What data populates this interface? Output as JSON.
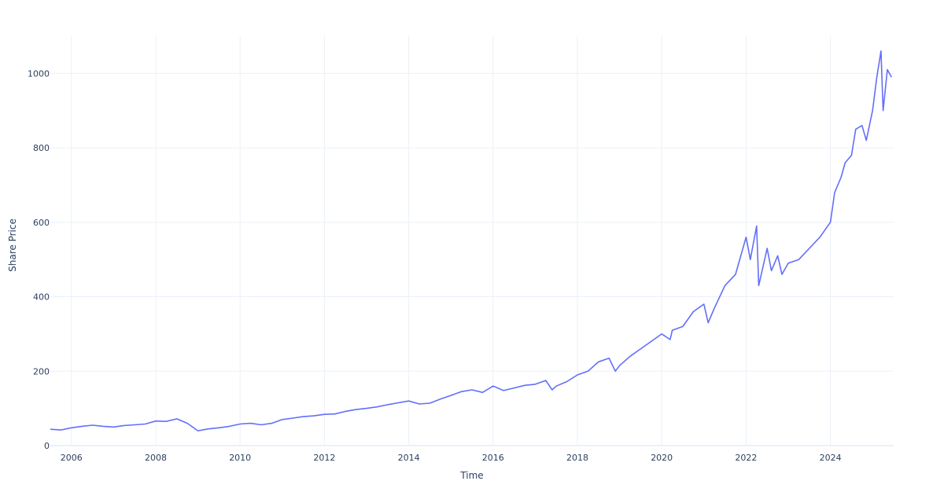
{
  "chart_data": {
    "type": "line",
    "title": "",
    "xlabel": "Time",
    "ylabel": "Share Price",
    "xlim": [
      2005.5,
      2025.5
    ],
    "ylim": [
      0,
      1100
    ],
    "x_ticks": [
      2006,
      2008,
      2010,
      2012,
      2014,
      2016,
      2018,
      2020,
      2022,
      2024
    ],
    "x_tick_labels": [
      "2006",
      "2008",
      "2010",
      "2012",
      "2014",
      "2016",
      "2018",
      "2020",
      "2022",
      "2024"
    ],
    "y_ticks": [
      0,
      200,
      400,
      600,
      800,
      1000
    ],
    "y_tick_labels": [
      "0",
      "200",
      "400",
      "600",
      "800",
      "1000"
    ],
    "grid": true,
    "legend": "none",
    "colors": {
      "line": "#636efa",
      "grid": "#ebf0f8",
      "text": "#2a3f5f",
      "background": "#ffffff"
    },
    "series": [
      {
        "x": [
          2005.5,
          2005.75,
          2006.0,
          2006.25,
          2006.5,
          2006.75,
          2007.0,
          2007.25,
          2007.5,
          2007.75,
          2008.0,
          2008.25,
          2008.5,
          2008.75,
          2009.0,
          2009.25,
          2009.5,
          2009.75,
          2010.0,
          2010.25,
          2010.5,
          2010.75,
          2011.0,
          2011.25,
          2011.5,
          2011.75,
          2012.0,
          2012.25,
          2012.5,
          2012.75,
          2013.0,
          2013.25,
          2013.5,
          2013.75,
          2014.0,
          2014.25,
          2014.5,
          2014.75,
          2015.0,
          2015.25,
          2015.5,
          2015.75,
          2016.0,
          2016.25,
          2016.5,
          2016.75,
          2017.0,
          2017.25,
          2017.4,
          2017.5,
          2017.75,
          2018.0,
          2018.25,
          2018.5,
          2018.75,
          2018.9,
          2019.0,
          2019.25,
          2019.5,
          2019.75,
          2020.0,
          2020.2,
          2020.25,
          2020.5,
          2020.75,
          2021.0,
          2021.1,
          2021.25,
          2021.5,
          2021.75,
          2022.0,
          2022.1,
          2022.25,
          2022.3,
          2022.5,
          2022.6,
          2022.75,
          2022.85,
          2023.0,
          2023.25,
          2023.5,
          2023.75,
          2024.0,
          2024.1,
          2024.25,
          2024.35,
          2024.5,
          2024.6,
          2024.75,
          2024.85,
          2025.0,
          2025.1,
          2025.2,
          2025.25,
          2025.35,
          2025.45
        ],
        "y": [
          44,
          42,
          48,
          52,
          55,
          52,
          50,
          54,
          56,
          58,
          66,
          65,
          72,
          60,
          40,
          45,
          48,
          52,
          58,
          60,
          56,
          60,
          70,
          74,
          78,
          80,
          84,
          85,
          92,
          97,
          100,
          104,
          110,
          115,
          120,
          112,
          114,
          125,
          135,
          145,
          150,
          143,
          160,
          148,
          155,
          162,
          165,
          175,
          150,
          160,
          172,
          190,
          200,
          225,
          235,
          200,
          215,
          240,
          260,
          280,
          300,
          285,
          310,
          320,
          360,
          380,
          330,
          370,
          430,
          460,
          560,
          500,
          590,
          430,
          530,
          470,
          510,
          460,
          490,
          500,
          530,
          560,
          600,
          680,
          720,
          760,
          780,
          850,
          860,
          820,
          900,
          990,
          1060,
          900,
          1010,
          990
        ]
      }
    ]
  }
}
